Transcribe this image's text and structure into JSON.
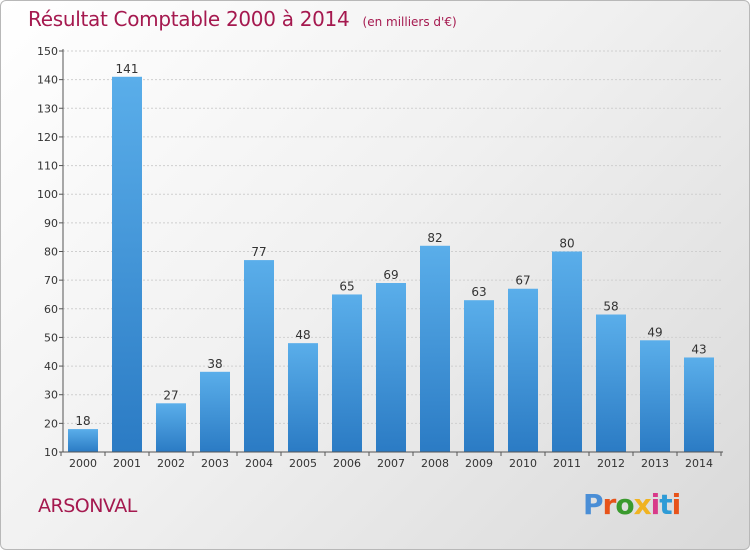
{
  "header": {
    "title": "Résultat Comptable 2000 à 2014",
    "unit": "(en milliers d'€)"
  },
  "footer": {
    "commune": "ARSONVAL",
    "logo": "Proxiti",
    "logo_colors": [
      "#4a8ed6",
      "#e7531a",
      "#3a9a2e",
      "#f0b321",
      "#d83a8a",
      "#2e9bd6",
      "#e7531a"
    ]
  },
  "colors": {
    "accent": "#a5194f",
    "bar_top": "#5aaeea",
    "bar_bottom": "#2b7bc4"
  },
  "chart_data": {
    "type": "bar",
    "title": "Résultat Comptable 2000 à 2014",
    "categories": [
      "2000",
      "2001",
      "2002",
      "2003",
      "2004",
      "2005",
      "2006",
      "2007",
      "2008",
      "2009",
      "2010",
      "2011",
      "2012",
      "2013",
      "2014"
    ],
    "values": [
      18,
      141,
      27,
      38,
      77,
      48,
      65,
      69,
      82,
      63,
      67,
      80,
      58,
      49,
      43
    ],
    "ylim": [
      10,
      150
    ],
    "yticks": [
      10,
      20,
      30,
      40,
      50,
      60,
      70,
      80,
      90,
      100,
      110,
      120,
      130,
      140,
      150
    ],
    "grid": true,
    "data_labels": true
  }
}
